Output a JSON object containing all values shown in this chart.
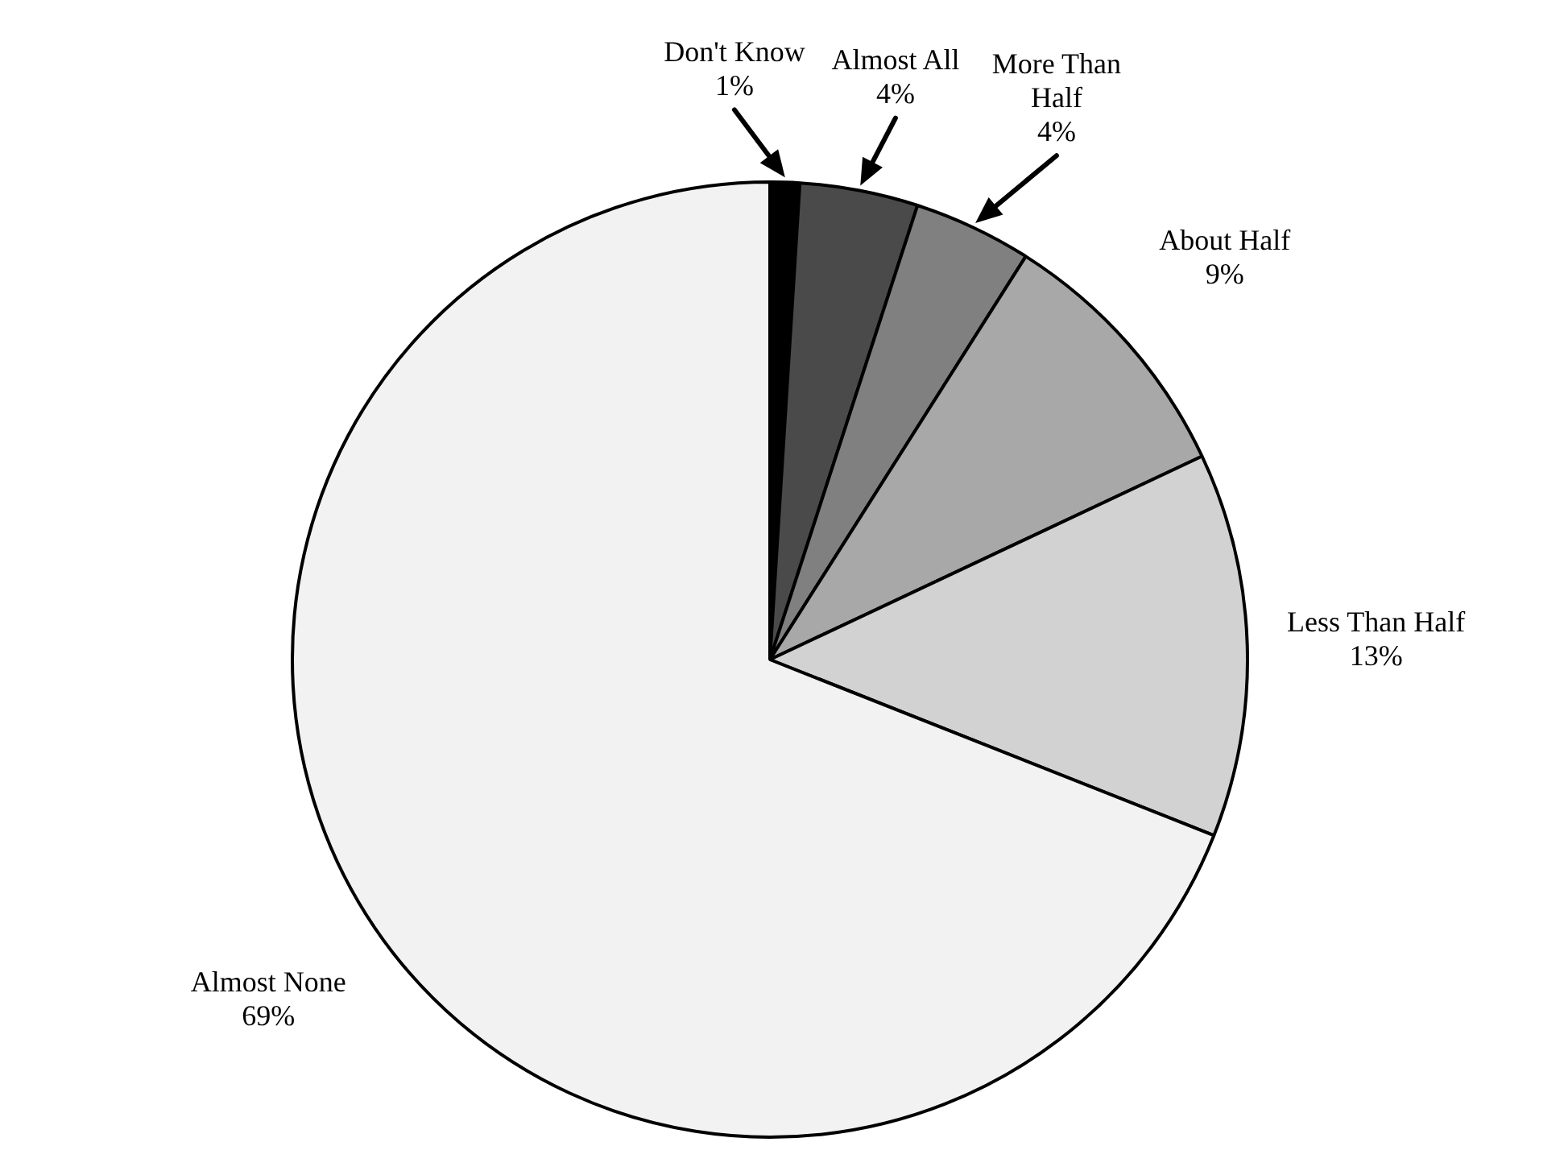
{
  "chart_data": {
    "type": "pie",
    "categories": [
      "Don't Know",
      "Almost All",
      "More Than Half",
      "About Half",
      "Less Than Half",
      "Almost None"
    ],
    "values": [
      1,
      4,
      4,
      9,
      13,
      69
    ],
    "value_labels": [
      "1%",
      "4%",
      "4%",
      "9%",
      "13%",
      "69%"
    ],
    "colors": [
      "#000000",
      "#4a4a4a",
      "#808080",
      "#a8a8a8",
      "#d2d2d2",
      "#f2f2f2"
    ],
    "legend": false
  }
}
